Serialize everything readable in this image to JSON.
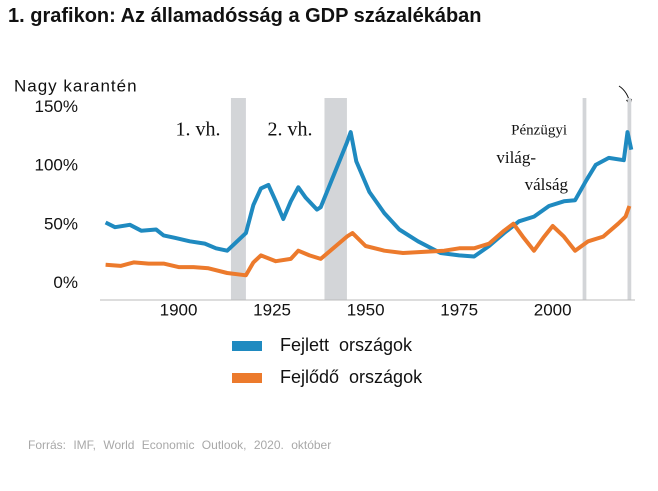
{
  "chart_data": {
    "type": "line",
    "title": "1. grafikon: Az államadósság a GDP százalékában",
    "annotations": [
      "1. vh.",
      "2. vh.",
      "Pénzügyi",
      "világ-",
      "válság",
      "Nagy karantén"
    ],
    "source": "Forrás: IMF, World Economic Outlook, 2020. október",
    "xlim": [
      1879,
      2022
    ],
    "xticks": [
      1900,
      1925,
      1950,
      1975,
      2000
    ],
    "ylim": [
      -14,
      158
    ],
    "yticks": [
      {
        "value": 0,
        "label": "0%"
      },
      {
        "value": 50,
        "label": "50%"
      },
      {
        "value": 100,
        "label": "100%"
      },
      {
        "value": 150,
        "label": "150%"
      }
    ],
    "shaded_periods": [
      [
        1914,
        1918
      ],
      [
        1939,
        1945
      ],
      [
        2008,
        2009
      ],
      [
        2020,
        2021
      ]
    ],
    "series": [
      {
        "name": "Fejlett országok",
        "color": "#1f8ac0",
        "x": [
          1880.5,
          1883,
          1887,
          1890,
          1894,
          1896,
          1899,
          1903,
          1907,
          1910,
          1913,
          1918,
          1920,
          1922,
          1924,
          1926,
          1928,
          1930,
          1932,
          1934,
          1937,
          1938,
          1945,
          1946,
          1947.5,
          1951,
          1955,
          1959,
          1964,
          1970,
          1975,
          1979,
          1983,
          1987,
          1991,
          1995,
          1999,
          2003,
          2006,
          2009,
          2011.5,
          2015,
          2019,
          2020,
          2021
        ],
        "values": [
          52,
          48,
          50,
          45,
          46,
          41,
          39,
          36,
          34,
          30,
          28,
          43,
          67,
          81,
          84,
          70,
          55,
          70,
          82,
          73,
          63,
          65,
          120,
          129,
          104,
          78,
          60,
          46,
          36,
          26,
          24,
          23,
          32,
          43,
          53,
          57,
          66,
          70,
          71,
          88,
          101,
          107,
          105,
          129,
          114
        ]
      },
      {
        "name": "Fejlődő országok",
        "color": "#ec7a2c",
        "x": [
          1880.5,
          1884.5,
          1888,
          1892,
          1896,
          1900,
          1904,
          1908,
          1913,
          1918,
          1920,
          1922,
          1926,
          1930,
          1932,
          1935,
          1938,
          1945,
          1946.5,
          1950,
          1955,
          1960,
          1966,
          1971,
          1975,
          1979,
          1983,
          1987,
          1989.5,
          1992,
          1995,
          1997.5,
          2000,
          2003,
          2006,
          2009.5,
          2013.5,
          2017.5,
          2019.5,
          2020.5
        ],
        "values": [
          16,
          15,
          18,
          17,
          17,
          14,
          14,
          13,
          9,
          7,
          18,
          24,
          19,
          21,
          28,
          24,
          21,
          40,
          43,
          32,
          28,
          26,
          27,
          28,
          30,
          30,
          34,
          45,
          51,
          40,
          28,
          39,
          49,
          40,
          28,
          36,
          40,
          51,
          57,
          66
        ]
      }
    ]
  }
}
